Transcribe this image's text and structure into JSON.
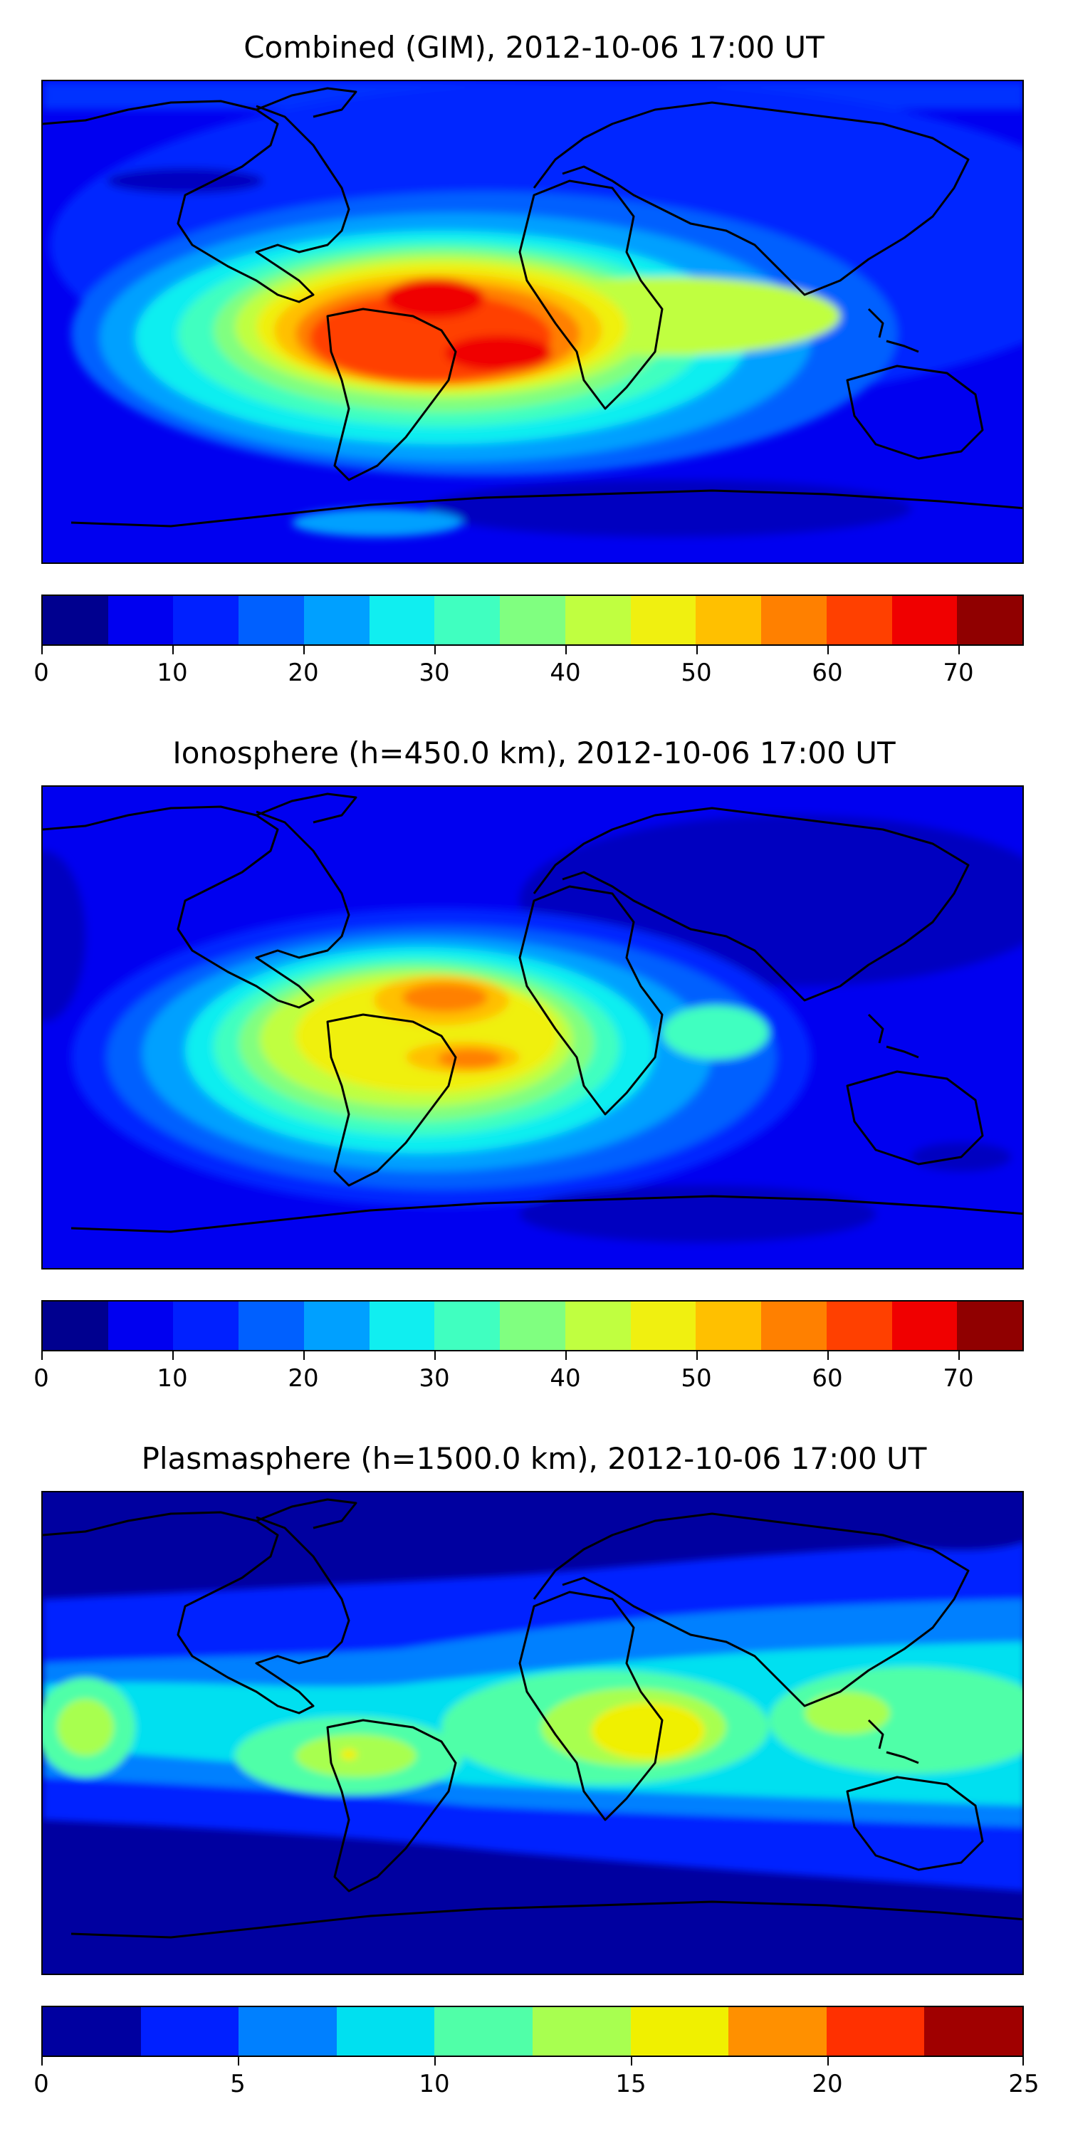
{
  "panels": [
    {
      "title": "Combined (GIM), 2012-10-06 17:00 UT",
      "colorbar": {
        "colors": [
          "#00008f",
          "#0000f0",
          "#0020ff",
          "#0060ff",
          "#00a0ff",
          "#10eef0",
          "#40ffc0",
          "#80ff80",
          "#c0ff40",
          "#f0f010",
          "#ffc000",
          "#ff8000",
          "#ff4000",
          "#f00000",
          "#900000"
        ],
        "ticks": [
          "0",
          "10",
          "20",
          "30",
          "40",
          "50",
          "60",
          "70"
        ],
        "tick_values": [
          0,
          10,
          20,
          30,
          40,
          50,
          60,
          70
        ],
        "range": [
          0,
          75
        ]
      }
    },
    {
      "title": "Ionosphere  (h=450.0 km), 2012-10-06 17:00 UT",
      "colorbar": {
        "colors": [
          "#00008f",
          "#0000f0",
          "#0020ff",
          "#0060ff",
          "#00a0ff",
          "#10eef0",
          "#40ffc0",
          "#80ff80",
          "#c0ff40",
          "#f0f010",
          "#ffc000",
          "#ff8000",
          "#ff4000",
          "#f00000",
          "#900000"
        ],
        "ticks": [
          "0",
          "10",
          "20",
          "30",
          "40",
          "50",
          "60",
          "70"
        ],
        "tick_values": [
          0,
          10,
          20,
          30,
          40,
          50,
          60,
          70
        ],
        "range": [
          0,
          75
        ]
      }
    },
    {
      "title": "Plasmasphere (h=1500.0 km), 2012-10-06 17:00 UT",
      "colorbar": {
        "colors": [
          "#0000a0",
          "#0020ff",
          "#0080ff",
          "#00e0f0",
          "#50ffa8",
          "#a8ff50",
          "#f0f000",
          "#ff9000",
          "#ff3000",
          "#a00000"
        ],
        "ticks": [
          "0",
          "5",
          "10",
          "15",
          "20",
          "25"
        ],
        "tick_values": [
          0,
          5,
          10,
          15,
          20,
          25
        ],
        "range": [
          0,
          25
        ]
      }
    }
  ]
}
